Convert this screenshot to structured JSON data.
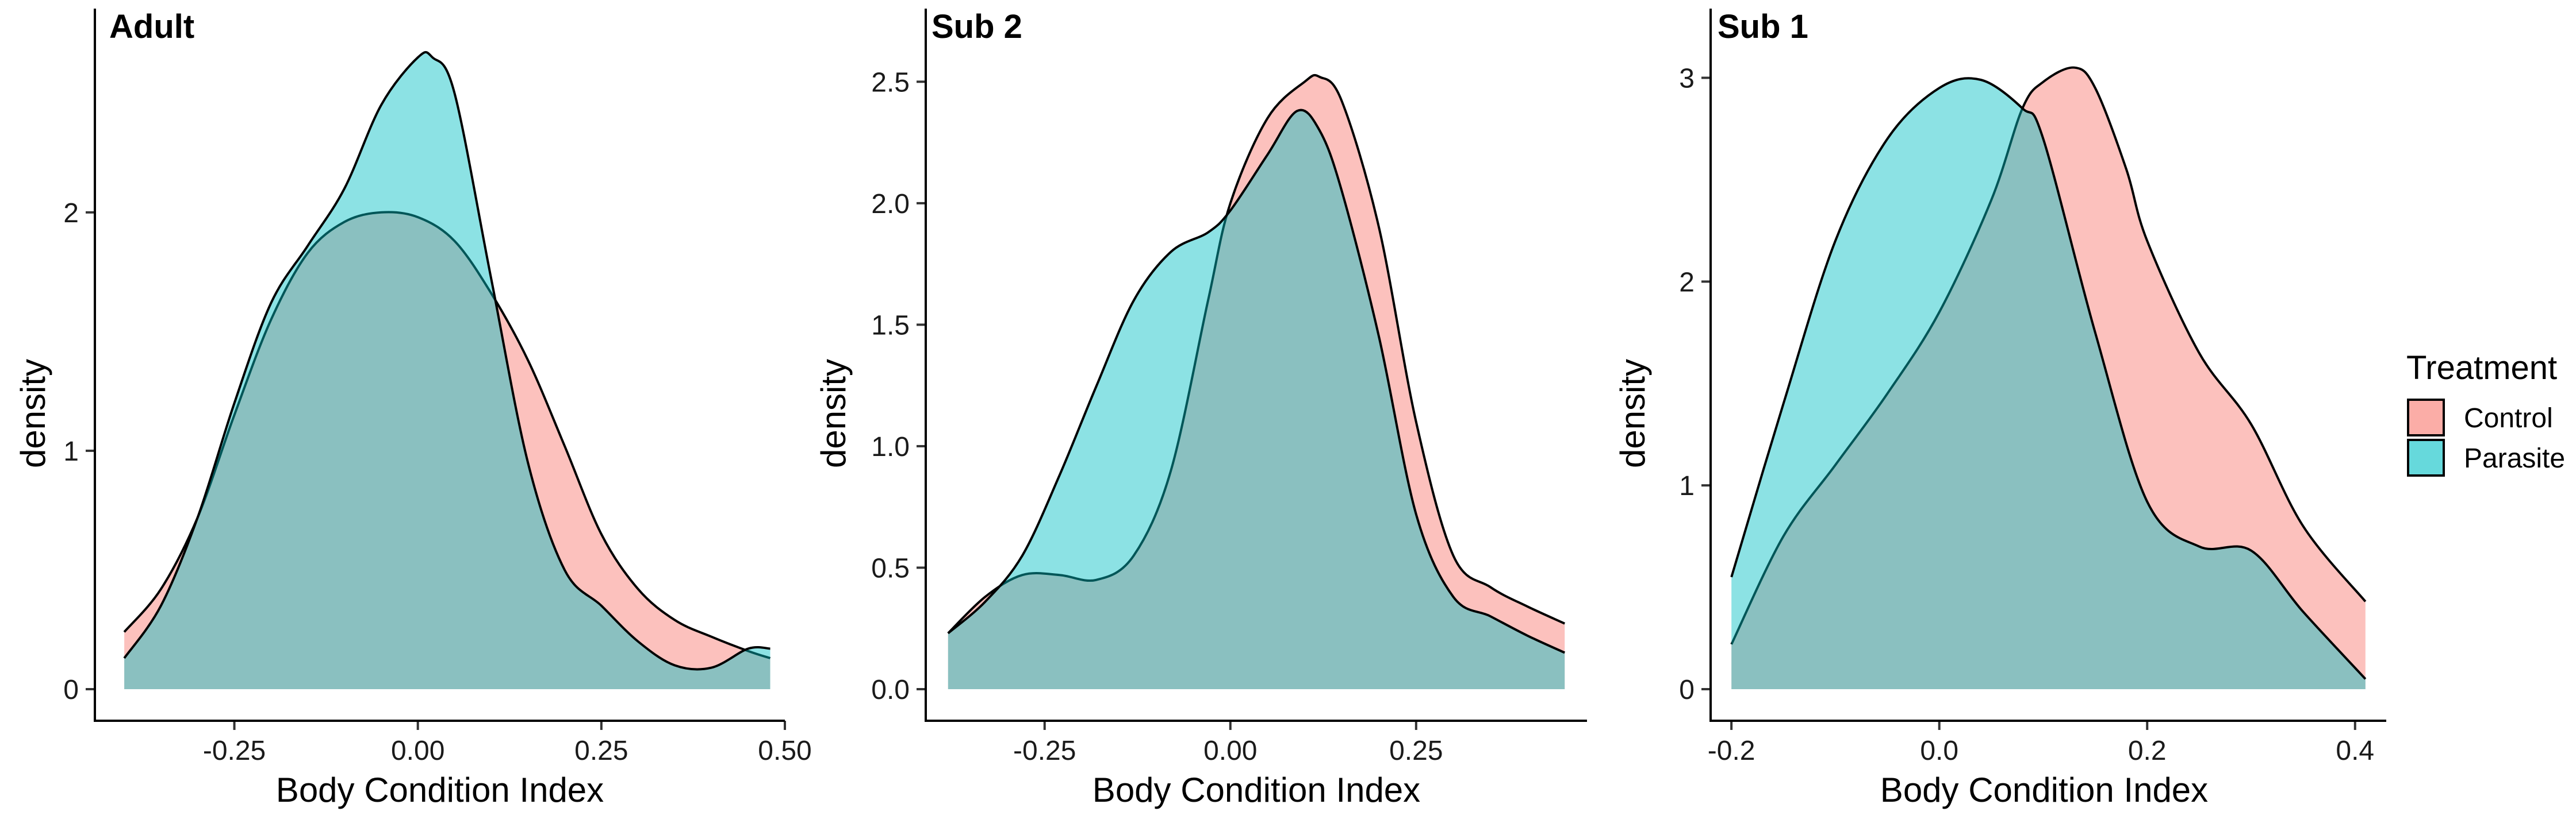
{
  "chart_data": [
    {
      "type": "area",
      "panel": "Adult",
      "title": "Adult",
      "xlabel": "Body Condition Index",
      "ylabel": "density",
      "xlim": [
        -0.44,
        0.5
      ],
      "ylim": [
        0,
        2.65
      ],
      "x_ticks": [
        -0.25,
        0.0,
        0.25,
        0.5
      ],
      "x_tick_labels": [
        "-0.25",
        "0.00",
        "0.25",
        "0.50"
      ],
      "y_ticks": [
        0,
        1,
        2
      ],
      "y_tick_labels": [
        "0",
        "1",
        "2"
      ],
      "series": [
        {
          "name": "Control",
          "x": [
            -0.4,
            -0.35,
            -0.3,
            -0.25,
            -0.2,
            -0.15,
            -0.1,
            -0.05,
            0.0,
            0.05,
            0.1,
            0.15,
            0.2,
            0.25,
            0.3,
            0.35,
            0.4,
            0.45,
            0.48
          ],
          "y": [
            0.24,
            0.42,
            0.72,
            1.15,
            1.55,
            1.83,
            1.96,
            2.0,
            1.98,
            1.88,
            1.66,
            1.38,
            1.02,
            0.65,
            0.42,
            0.29,
            0.22,
            0.16,
            0.13
          ]
        },
        {
          "name": "Parasite",
          "x": [
            -0.4,
            -0.35,
            -0.3,
            -0.25,
            -0.2,
            -0.15,
            -0.1,
            -0.05,
            0.0,
            0.02,
            0.05,
            0.1,
            0.15,
            0.2,
            0.25,
            0.3,
            0.35,
            0.4,
            0.45,
            0.48
          ],
          "y": [
            0.13,
            0.35,
            0.72,
            1.2,
            1.62,
            1.86,
            2.1,
            2.45,
            2.65,
            2.65,
            2.5,
            1.72,
            0.95,
            0.5,
            0.35,
            0.2,
            0.1,
            0.09,
            0.17,
            0.17
          ]
        }
      ]
    },
    {
      "type": "area",
      "panel": "Sub 2",
      "title": "Sub 2",
      "xlabel": "Body Condition Index",
      "ylabel": "density",
      "xlim": [
        -0.41,
        0.48
      ],
      "ylim": [
        0,
        2.6
      ],
      "x_ticks": [
        -0.25,
        0.0,
        0.25
      ],
      "x_tick_labels": [
        "-0.25",
        "0.00",
        "0.25"
      ],
      "y_ticks": [
        0.0,
        0.5,
        1.0,
        1.5,
        2.0,
        2.5
      ],
      "y_tick_labels": [
        "0.0",
        "0.5",
        "1.0",
        "1.5",
        "2.0",
        "2.5"
      ],
      "series": [
        {
          "name": "Control",
          "x": [
            -0.38,
            -0.33,
            -0.28,
            -0.23,
            -0.18,
            -0.13,
            -0.08,
            -0.03,
            0.0,
            0.05,
            0.1,
            0.12,
            0.15,
            0.2,
            0.25,
            0.3,
            0.35,
            0.4,
            0.45
          ],
          "y": [
            0.23,
            0.38,
            0.47,
            0.47,
            0.45,
            0.55,
            0.9,
            1.6,
            2.0,
            2.35,
            2.5,
            2.52,
            2.42,
            1.9,
            1.1,
            0.55,
            0.42,
            0.34,
            0.27
          ]
        },
        {
          "name": "Parasite",
          "x": [
            -0.38,
            -0.33,
            -0.28,
            -0.23,
            -0.18,
            -0.13,
            -0.08,
            -0.03,
            0.0,
            0.05,
            0.09,
            0.12,
            0.15,
            0.2,
            0.25,
            0.3,
            0.35,
            0.4,
            0.45
          ],
          "y": [
            0.23,
            0.36,
            0.55,
            0.88,
            1.25,
            1.6,
            1.8,
            1.88,
            1.97,
            2.2,
            2.38,
            2.3,
            2.05,
            1.45,
            0.72,
            0.38,
            0.3,
            0.22,
            0.15
          ]
        }
      ]
    },
    {
      "type": "area",
      "panel": "Sub 1",
      "title": "Sub 1",
      "xlabel": "Body Condition Index",
      "ylabel": "density",
      "xlim": [
        -0.22,
        0.43
      ],
      "ylim": [
        0,
        3.1
      ],
      "x_ticks": [
        -0.2,
        0.0,
        0.2,
        0.4
      ],
      "x_tick_labels": [
        "-0.2",
        "0.0",
        "0.2",
        "0.4"
      ],
      "y_ticks": [
        0,
        1,
        2,
        3
      ],
      "y_tick_labels": [
        "0",
        "1",
        "2",
        "3"
      ],
      "series": [
        {
          "name": "Control",
          "x": [
            -0.2,
            -0.15,
            -0.1,
            -0.05,
            0.0,
            0.05,
            0.08,
            0.1,
            0.13,
            0.15,
            0.18,
            0.2,
            0.25,
            0.3,
            0.35,
            0.41
          ],
          "y": [
            0.22,
            0.75,
            1.1,
            1.45,
            1.85,
            2.4,
            2.85,
            2.98,
            3.05,
            2.95,
            2.55,
            2.2,
            1.65,
            1.3,
            0.8,
            0.43
          ]
        },
        {
          "name": "Parasite",
          "x": [
            -0.2,
            -0.15,
            -0.1,
            -0.05,
            0.0,
            0.04,
            0.08,
            0.1,
            0.15,
            0.2,
            0.25,
            0.3,
            0.35,
            0.41
          ],
          "y": [
            0.55,
            1.4,
            2.2,
            2.7,
            2.95,
            2.99,
            2.85,
            2.7,
            1.75,
            0.92,
            0.7,
            0.68,
            0.38,
            0.05
          ]
        }
      ]
    }
  ],
  "legend": {
    "title": "Treatment",
    "items": [
      {
        "label": "Control",
        "color": "#F8766D"
      },
      {
        "label": "Parasite",
        "color": "#00BFC4"
      }
    ]
  },
  "colors": {
    "control": "#F8766D",
    "parasite": "#00BFC4"
  }
}
